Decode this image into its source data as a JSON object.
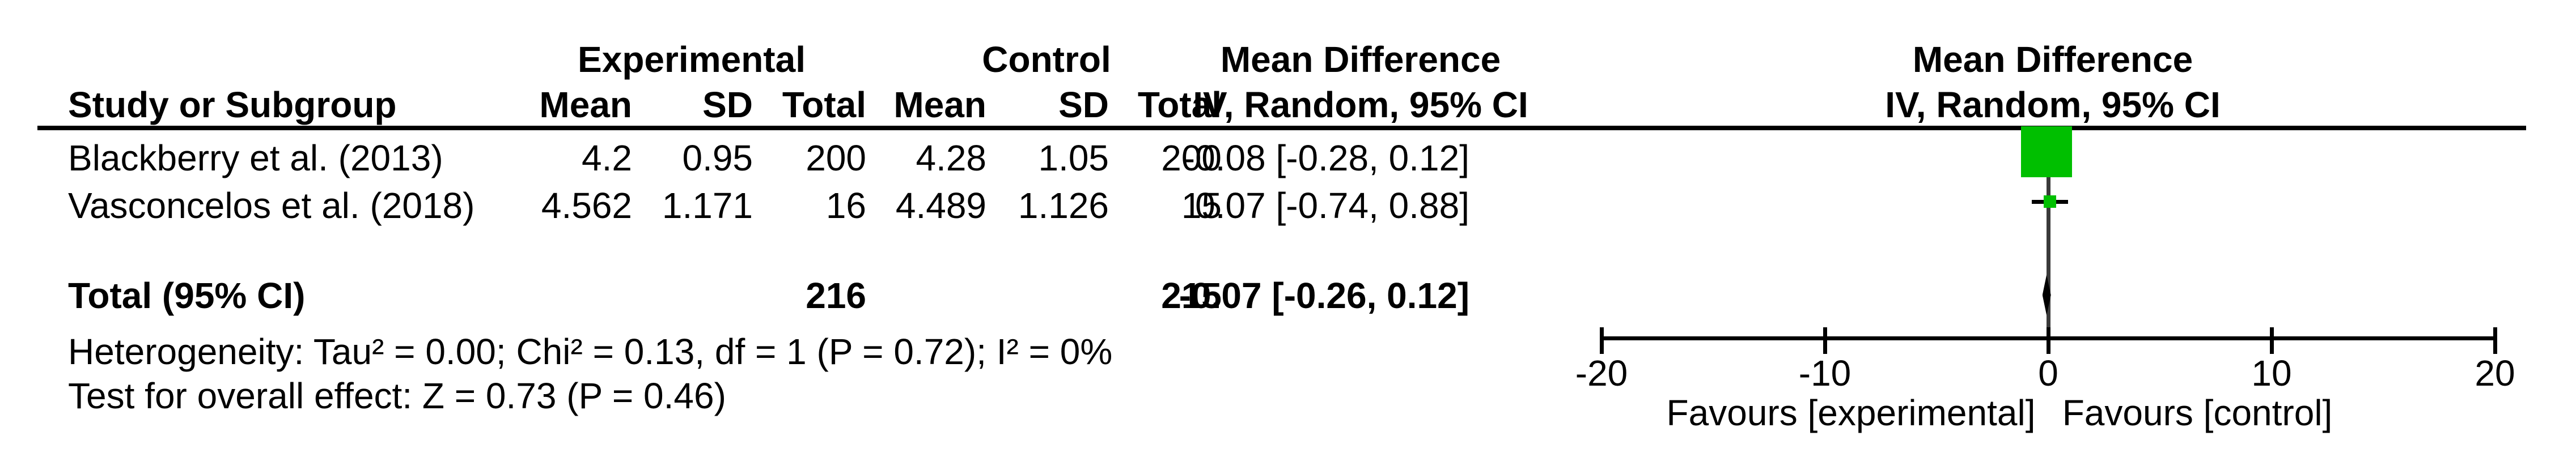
{
  "table": {
    "group_headers": {
      "experimental": "Experimental",
      "control": "Control",
      "md_left": "Mean Difference",
      "md_right": "Mean Difference"
    },
    "col_headers": {
      "study": "Study or Subgroup",
      "mean1": "Mean",
      "sd1": "SD",
      "total1": "Total",
      "mean2": "Mean",
      "sd2": "SD",
      "total2": "Total",
      "iv_left": "IV, Random, 95% CI",
      "iv_right": "IV, Random, 95% CI"
    },
    "rows": [
      {
        "study": "Blackberry et al. (2013)",
        "mean1": "4.2",
        "sd1": "0.95",
        "total1": "200",
        "mean2": "4.28",
        "sd2": "1.05",
        "total2": "200",
        "ci": "-0.08 [-0.28, 0.12]"
      },
      {
        "study": "Vasconcelos et al. (2018)",
        "mean1": "4.562",
        "sd1": "1.171",
        "total1": "16",
        "mean2": "4.489",
        "sd2": "1.126",
        "total2": "15",
        "ci": "0.07 [-0.74, 0.88]"
      }
    ],
    "total_row": {
      "label": "Total (95% CI)",
      "total1": "216",
      "total2": "215",
      "ci": "-0.07 [-0.26, 0.12]"
    },
    "footnotes": {
      "heterogeneity": "Heterogeneity: Tau² = 0.00; Chi² = 0.13, df = 1 (P = 0.72); I² = 0%",
      "overall_effect": "Test for overall effect: Z = 0.73 (P = 0.46)"
    }
  },
  "axis": {
    "favours_left": "Favours [experimental]",
    "favours_right": "Favours [control]"
  },
  "colors": {
    "marker_green": "#00bf00",
    "zero_line": "#3a3a3a",
    "axis_black": "#000000"
  },
  "chart_data": {
    "type": "forest",
    "effect_measure": "Mean Difference",
    "method": "IV, Random, 95% CI",
    "studies": [
      {
        "name": "Blackberry et al. (2013)",
        "exp_mean": 4.2,
        "exp_sd": 0.95,
        "exp_total": 200,
        "ctl_mean": 4.28,
        "ctl_sd": 1.05,
        "ctl_total": 200,
        "md": -0.08,
        "ci_low": -0.28,
        "ci_high": 0.12
      },
      {
        "name": "Vasconcelos et al. (2018)",
        "exp_mean": 4.562,
        "exp_sd": 1.171,
        "exp_total": 16,
        "ctl_mean": 4.489,
        "ctl_sd": 1.126,
        "ctl_total": 15,
        "md": 0.07,
        "ci_low": -0.74,
        "ci_high": 0.88
      }
    ],
    "total": {
      "exp_total": 216,
      "ctl_total": 215,
      "md": -0.07,
      "ci_low": -0.26,
      "ci_high": 0.12
    },
    "heterogeneity": {
      "tau2": 0.0,
      "chi2": 0.13,
      "df": 1,
      "p": 0.72,
      "i2": "0%"
    },
    "overall_effect": {
      "z": 0.73,
      "p": 0.46
    },
    "xlim": [
      -20,
      20
    ],
    "xticks": [
      -20,
      -10,
      0,
      10,
      20
    ],
    "grid": false,
    "favours_left": "Favours [experimental]",
    "favours_right": "Favours [control]"
  }
}
